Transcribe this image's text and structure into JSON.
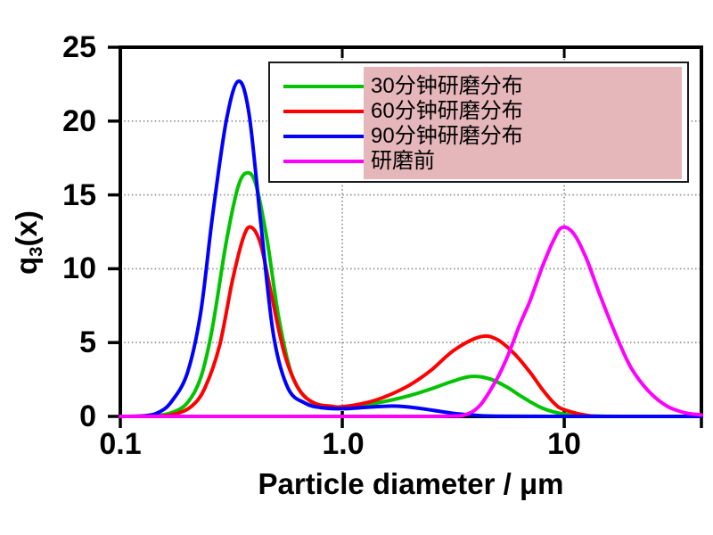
{
  "figure": {
    "background": "#ffffff"
  },
  "chart_data": {
    "type": "line",
    "title": "",
    "xlabel": "Particle diameter / μm",
    "ylabel": "q3(x)",
    "ylabel_parts": {
      "base": "q",
      "sub": "3",
      "suffix": "(x)"
    },
    "xscale": "log",
    "xlim": [
      0.1,
      41.5
    ],
    "ylim": [
      0,
      25
    ],
    "axis_color": "#000000",
    "grid": {
      "show": true,
      "color": "#8a8a8a",
      "style": "dotted",
      "x_lines": [
        1.0,
        10
      ],
      "y_lines": [
        5,
        10,
        15,
        20
      ]
    },
    "xticks": [
      {
        "value": 0.1,
        "label": "0.1"
      },
      {
        "value": 1.0,
        "label": "1.0"
      },
      {
        "value": 10,
        "label": "10"
      }
    ],
    "yticks": [
      {
        "value": 25,
        "label": "25"
      },
      {
        "value": 20,
        "label": "20"
      },
      {
        "value": 15,
        "label": "15"
      },
      {
        "value": 10,
        "label": "10"
      },
      {
        "value": 5,
        "label": "5"
      },
      {
        "value": 0,
        "label": "0"
      }
    ],
    "legend": {
      "position": "top-right",
      "border_color": "#1a1a1a",
      "background": "#ffffff",
      "highlight_overlay_color": "#e5b6ba"
    },
    "series": [
      {
        "name": "30分钟研磨分布",
        "color": "#00c400",
        "peaks": [
          {
            "x": 0.375,
            "y": 16.5
          },
          {
            "x": 3.8,
            "y": 2.7
          }
        ],
        "x": [
          0.1,
          0.14,
          0.17,
          0.2,
          0.23,
          0.26,
          0.3,
          0.34,
          0.375,
          0.41,
          0.46,
          0.52,
          0.6,
          0.72,
          0.85,
          1.0,
          1.25,
          1.6,
          2.0,
          2.5,
          3.1,
          3.8,
          4.6,
          5.5,
          6.5,
          8.0,
          10,
          13,
          20,
          41.5
        ],
        "y": [
          0,
          0.05,
          0.25,
          0.9,
          2.6,
          6.0,
          11.8,
          15.6,
          16.5,
          15.6,
          11.8,
          6.5,
          2.6,
          1.0,
          0.65,
          0.6,
          0.75,
          1.05,
          1.4,
          1.85,
          2.35,
          2.7,
          2.55,
          2.0,
          1.3,
          0.55,
          0.15,
          0.03,
          0,
          0
        ]
      },
      {
        "name": "60分钟研磨分布",
        "color": "#fe0000",
        "peaks": [
          {
            "x": 0.39,
            "y": 12.8
          },
          {
            "x": 4.2,
            "y": 5.4
          }
        ],
        "x": [
          0.1,
          0.15,
          0.18,
          0.21,
          0.24,
          0.28,
          0.32,
          0.36,
          0.39,
          0.43,
          0.48,
          0.55,
          0.64,
          0.75,
          0.9,
          1.0,
          1.3,
          1.6,
          2.0,
          2.5,
          3.2,
          4.2,
          5.0,
          6.0,
          7.0,
          8.0,
          9.0,
          10,
          13,
          20,
          41.5
        ],
        "y": [
          0,
          0.03,
          0.2,
          0.7,
          1.9,
          4.8,
          9.2,
          12.2,
          12.8,
          11.6,
          8.2,
          4.2,
          1.8,
          0.9,
          0.68,
          0.65,
          0.95,
          1.4,
          2.1,
          3.1,
          4.5,
          5.4,
          5.2,
          4.2,
          3.0,
          1.8,
          0.9,
          0.45,
          0.05,
          0,
          0
        ]
      },
      {
        "name": "90分钟研磨分布",
        "color": "#0000fe",
        "peaks": [
          {
            "x": 0.34,
            "y": 22.7
          }
        ],
        "x": [
          0.1,
          0.13,
          0.15,
          0.17,
          0.2,
          0.23,
          0.26,
          0.3,
          0.34,
          0.38,
          0.43,
          0.49,
          0.57,
          0.68,
          0.8,
          1.0,
          1.3,
          1.7,
          2.1,
          2.6,
          3.2,
          4.0,
          5.0,
          10,
          41.5
        ],
        "y": [
          0,
          0.05,
          0.3,
          1.0,
          2.9,
          7.0,
          13.5,
          20.0,
          22.7,
          20.5,
          13.0,
          5.5,
          1.9,
          0.9,
          0.6,
          0.52,
          0.62,
          0.7,
          0.6,
          0.4,
          0.2,
          0.07,
          0.02,
          0,
          0
        ]
      },
      {
        "name": "研磨前",
        "color": "#ff00ff",
        "peaks": [
          {
            "x": 9.8,
            "y": 12.8
          }
        ],
        "x": [
          0.1,
          1.0,
          2.0,
          3.0,
          3.6,
          4.2,
          5.0,
          5.6,
          6.3,
          7.0,
          8.0,
          9.0,
          9.8,
          11,
          12.5,
          14.5,
          17,
          20,
          24,
          29,
          35,
          41.5
        ],
        "y": [
          0,
          0,
          0,
          0.02,
          0.12,
          0.8,
          2.6,
          4.2,
          6.2,
          7.8,
          10.2,
          12.0,
          12.8,
          12.4,
          10.8,
          8.2,
          5.6,
          3.3,
          1.7,
          0.7,
          0.25,
          0.1
        ]
      }
    ]
  }
}
